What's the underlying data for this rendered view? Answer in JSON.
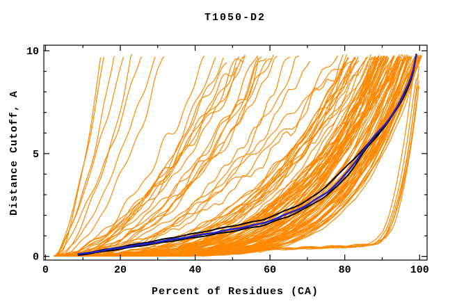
{
  "chart_data": {
    "type": "line",
    "title": "T1050-D2",
    "xlabel": "Percent of Residues (CA)",
    "ylabel": "Distance Cutoff, A",
    "xlim": [
      -0.45,
      102.0
    ],
    "ylim": [
      -0.18,
      10.27
    ],
    "x_axis": {
      "major_ticks": [
        0,
        20,
        40,
        60,
        80,
        100
      ],
      "minor_ticks": [
        10,
        30,
        50,
        70,
        90
      ]
    },
    "y_axis": {
      "major_ticks": [
        0,
        5,
        10
      ],
      "minor_ticks": [
        1,
        2,
        3,
        4,
        6,
        7,
        8,
        9
      ]
    },
    "grid": false,
    "legend": "none",
    "frame_color": "#000000",
    "background_color": "#ffffff",
    "ensemble": {
      "description": "many predicted-model accuracy curves (percent of CA residues under distance cutoff)",
      "color": "#ff8800",
      "line_width": 1.2,
      "start_percent": 3,
      "top_cutoff": 9.75,
      "groups": [
        {
          "count": 7,
          "reach_percent_at_top": [
            13.5,
            30
          ],
          "shape_exponent": [
            1.15,
            1.6
          ],
          "wobble": 0.3
        },
        {
          "count": 10,
          "reach_percent_at_top": [
            30,
            55
          ],
          "shape_exponent": [
            1.45,
            2.1
          ],
          "wobble": 0.33
        },
        {
          "count": 13,
          "reach_percent_at_top": [
            55,
            80
          ],
          "shape_exponent": [
            1.8,
            2.7
          ],
          "wobble": 0.3
        },
        {
          "count": 16,
          "reach_percent_at_top": [
            80,
            88
          ],
          "shape_exponent": [
            2.4,
            3.6
          ],
          "wobble": 0.22
        },
        {
          "count": 46,
          "reach_percent_at_top": [
            88,
            96
          ],
          "shape_exponent": [
            3.0,
            5.4
          ],
          "wobble": 0.16
        },
        {
          "count": 34,
          "reach_percent_at_top": [
            96,
            100.6
          ],
          "shape_exponent": [
            3.8,
            6.4
          ],
          "wobble": 0.12
        }
      ]
    },
    "right_outliers": {
      "description": "poor models: flat near zero cutoff until ~90%, then steep rise at far right",
      "color": "#ff8800",
      "line_width": 1.2,
      "count": 6,
      "x_spread": 1.4,
      "y_scale_spread": 0.35,
      "base_points": [
        [
          3,
          0.05
        ],
        [
          12,
          0.1
        ],
        [
          25,
          0.15
        ],
        [
          40,
          0.2
        ],
        [
          56,
          0.24
        ],
        [
          58,
          0.36
        ],
        [
          68,
          0.42
        ],
        [
          78,
          0.48
        ],
        [
          86,
          0.55
        ],
        [
          89.5,
          0.8
        ],
        [
          91.5,
          1.3
        ],
        [
          93,
          2.1
        ],
        [
          94.5,
          3.2
        ],
        [
          95.8,
          4.4
        ],
        [
          96.9,
          5.6
        ],
        [
          97.9,
          6.9
        ],
        [
          98.7,
          8.1
        ],
        [
          99.4,
          9.1
        ],
        [
          99.9,
          9.75
        ]
      ]
    },
    "highlights": [
      {
        "name": "model-black-upper",
        "color": "#000000",
        "width": 2.0,
        "points": [
          [
            8.8,
            0.1
          ],
          [
            15,
            0.3
          ],
          [
            20,
            0.46
          ],
          [
            25,
            0.62
          ],
          [
            30,
            0.78
          ],
          [
            35,
            0.95
          ],
          [
            40,
            1.12
          ],
          [
            45,
            1.3
          ],
          [
            50,
            1.48
          ],
          [
            55,
            1.66
          ],
          [
            58,
            1.78
          ],
          [
            62,
            2.05
          ],
          [
            65,
            2.3
          ],
          [
            68,
            2.52
          ],
          [
            70,
            2.72
          ],
          [
            73,
            3.1
          ],
          [
            75,
            3.42
          ],
          [
            77,
            3.75
          ],
          [
            79,
            4.1
          ],
          [
            81,
            4.5
          ],
          [
            83,
            4.85
          ],
          [
            85,
            5.22
          ],
          [
            87,
            5.6
          ],
          [
            89,
            6.0
          ],
          [
            91,
            6.42
          ],
          [
            93,
            6.95
          ],
          [
            94.5,
            7.35
          ],
          [
            96,
            7.9
          ],
          [
            97,
            8.3
          ],
          [
            98,
            8.8
          ],
          [
            98.7,
            9.3
          ],
          [
            99.1,
            9.8
          ]
        ]
      },
      {
        "name": "model-black-lower",
        "color": "#000000",
        "width": 2.0,
        "points": [
          [
            8.8,
            0.06
          ],
          [
            20,
            0.36
          ],
          [
            30,
            0.64
          ],
          [
            40,
            0.92
          ],
          [
            50,
            1.22
          ],
          [
            58,
            1.5
          ],
          [
            65,
            1.95
          ],
          [
            70,
            2.38
          ],
          [
            75,
            2.95
          ],
          [
            78,
            3.4
          ],
          [
            81,
            4.0
          ],
          [
            83,
            4.5
          ],
          [
            85,
            5.05
          ],
          [
            87,
            5.5
          ],
          [
            89,
            5.95
          ],
          [
            91,
            6.4
          ],
          [
            93,
            6.9
          ],
          [
            94.5,
            7.32
          ],
          [
            96,
            7.85
          ],
          [
            97,
            8.27
          ],
          [
            98,
            8.77
          ],
          [
            98.7,
            9.27
          ],
          [
            99.1,
            9.75
          ]
        ]
      },
      {
        "name": "model-blue",
        "color": "#2121c4",
        "width": 2.6,
        "points": [
          [
            8.8,
            0.1
          ],
          [
            20,
            0.42
          ],
          [
            30,
            0.7
          ],
          [
            40,
            1.0
          ],
          [
            50,
            1.32
          ],
          [
            58,
            1.6
          ],
          [
            65,
            2.08
          ],
          [
            70,
            2.5
          ],
          [
            75,
            3.08
          ],
          [
            78,
            3.55
          ],
          [
            81,
            4.15
          ],
          [
            83,
            4.65
          ],
          [
            85,
            5.18
          ],
          [
            87,
            5.62
          ],
          [
            89,
            6.05
          ],
          [
            91,
            6.48
          ],
          [
            93,
            7.0
          ],
          [
            94.5,
            7.4
          ],
          [
            96,
            7.95
          ],
          [
            97,
            8.36
          ],
          [
            98,
            8.85
          ],
          [
            98.7,
            9.35
          ],
          [
            99.1,
            9.82
          ]
        ]
      }
    ]
  }
}
